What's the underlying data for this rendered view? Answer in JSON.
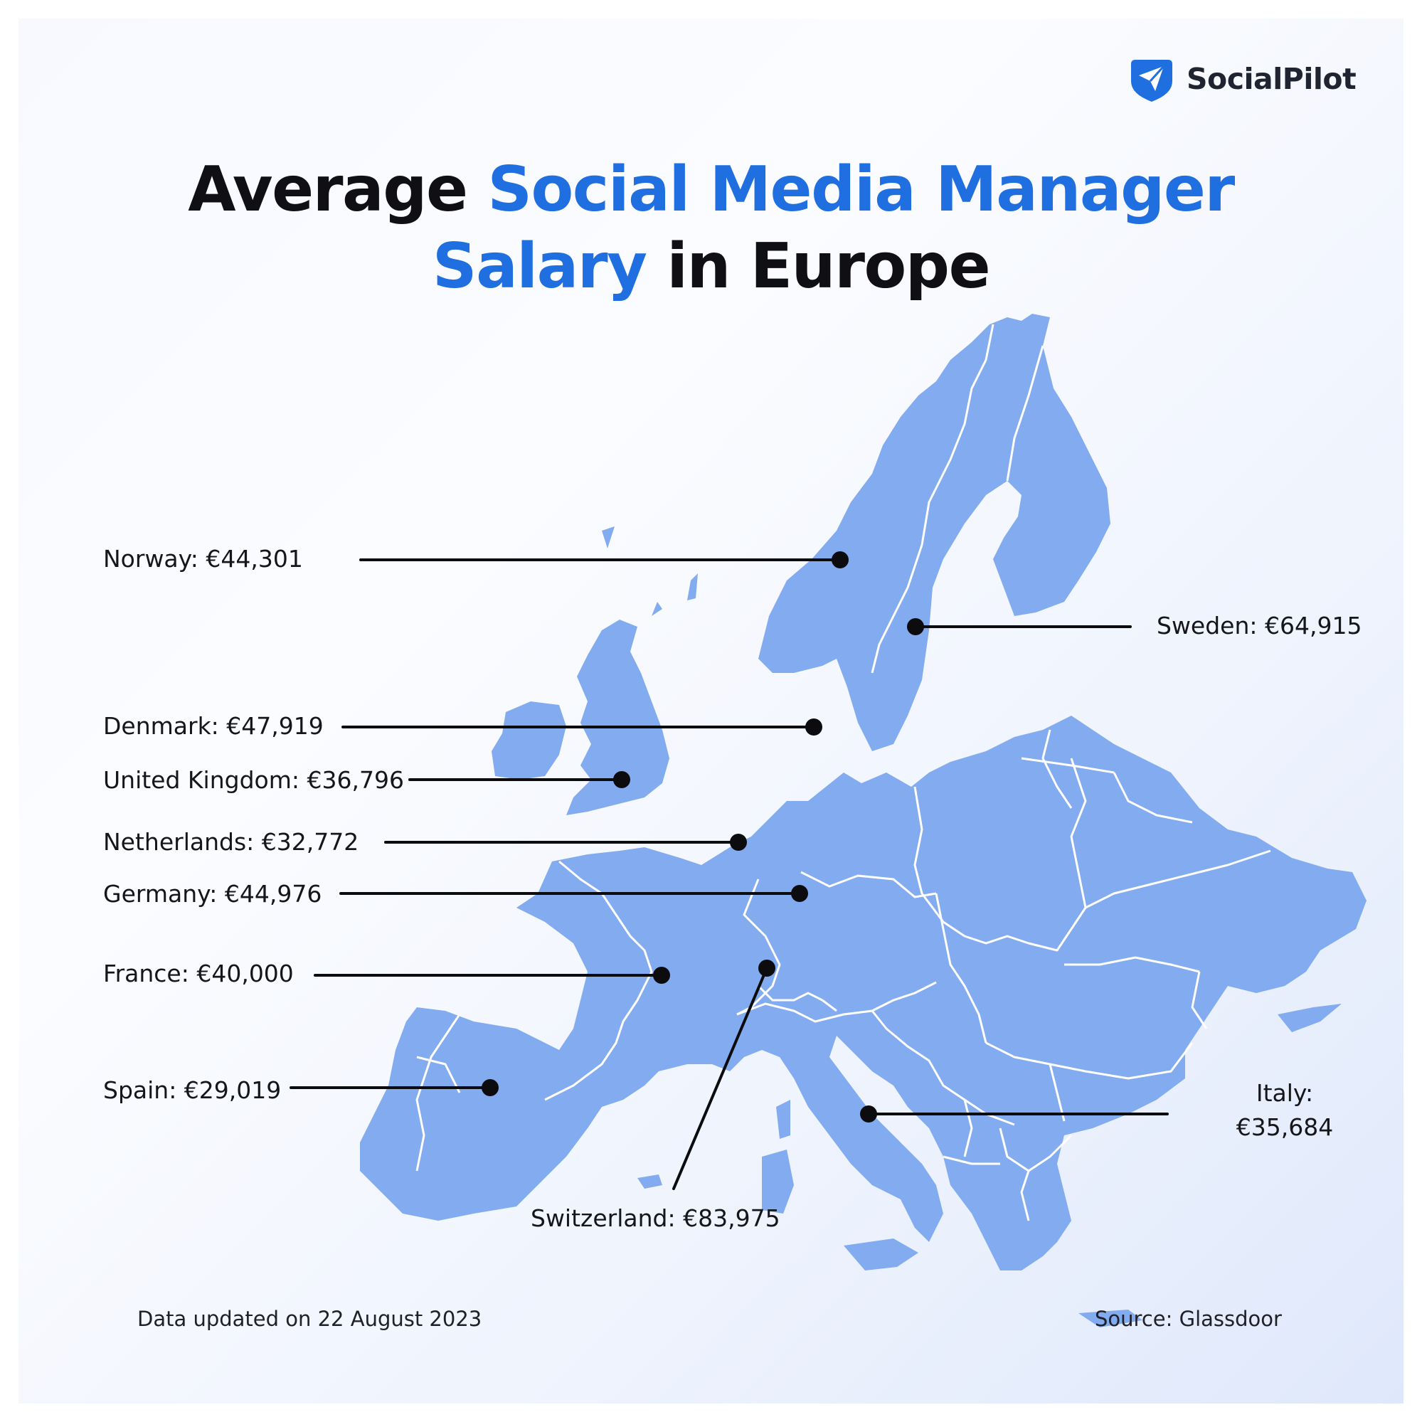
{
  "brand": {
    "name": "SocialPilot",
    "logo_icon": "paper-plane-shield-icon",
    "color": "#1f6fe0"
  },
  "title": {
    "line1_dark": "Average ",
    "line1_highlight": "Social Media Manager",
    "line2_highlight": "Salary",
    "line2_dark": " in Europe"
  },
  "colors": {
    "accent": "#1f6fe0",
    "land": "#82acef",
    "border": "#ffffff",
    "leader": "#0c0c0f"
  },
  "salaries": [
    {
      "key": "norway",
      "label": "Norway: €44,301",
      "country": "Norway",
      "salary_eur": 44301
    },
    {
      "key": "sweden",
      "label": "Sweden: €64,915",
      "country": "Sweden",
      "salary_eur": 64915
    },
    {
      "key": "denmark",
      "label": "Denmark: €47,919",
      "country": "Denmark",
      "salary_eur": 47919
    },
    {
      "key": "uk",
      "label": "United Kingdom: €36,796",
      "country": "United Kingdom",
      "salary_eur": 36796
    },
    {
      "key": "netherlands",
      "label": "Netherlands: €32,772",
      "country": "Netherlands",
      "salary_eur": 32772
    },
    {
      "key": "germany",
      "label": "Germany: €44,976",
      "country": "Germany",
      "salary_eur": 44976
    },
    {
      "key": "france",
      "label": "France: €40,000",
      "country": "France",
      "salary_eur": 40000
    },
    {
      "key": "spain",
      "label": "Spain: €29,019",
      "country": "Spain",
      "salary_eur": 29019
    },
    {
      "key": "switzerland",
      "label": "Switzerland: €83,975",
      "country": "Switzerland",
      "salary_eur": 83975
    },
    {
      "key": "italy",
      "label_line1": "Italy:",
      "label_line2": "€35,684",
      "country": "Italy",
      "salary_eur": 35684
    }
  ],
  "footer": {
    "updated": "Data updated on 22 August 2023",
    "source": "Source: Glassdoor"
  }
}
